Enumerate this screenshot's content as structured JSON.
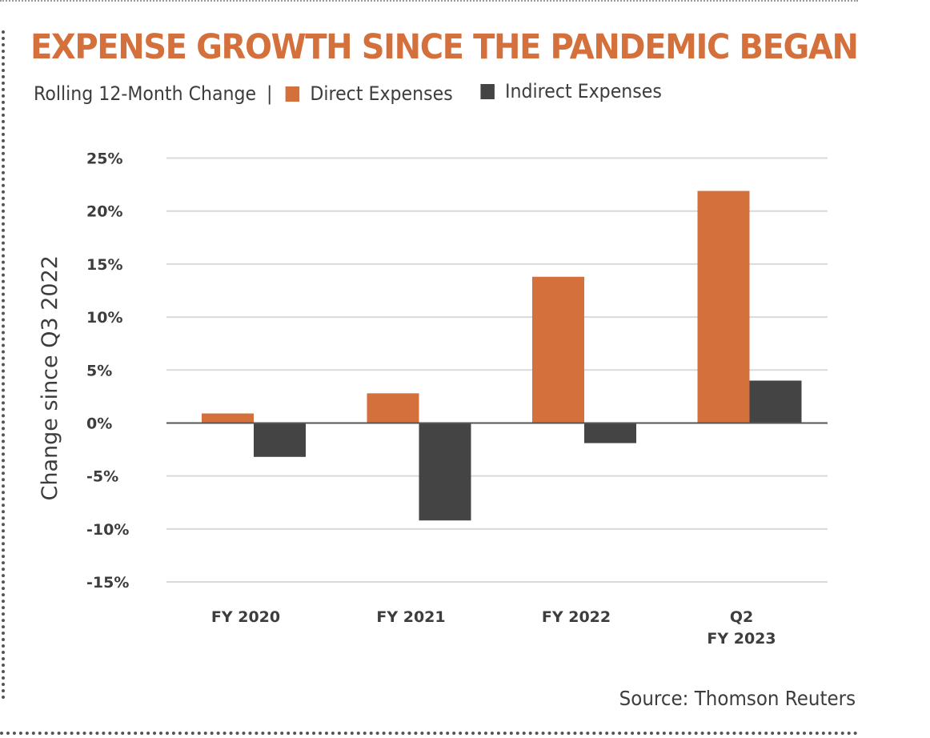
{
  "colors": {
    "direct": "#d4703c",
    "indirect": "#444444",
    "title": "#d4703c",
    "text": "#3d3d3d",
    "grid": "#d9d9d9",
    "zero_line": "#555555"
  },
  "header": {
    "title": "EXPENSE GROWTH SINCE THE PANDEMIC BEGAN",
    "subtitle": "Rolling 12-Month Change",
    "separator": "|"
  },
  "footer": {
    "source": "Source: Thomson Reuters"
  },
  "chart_data": {
    "type": "bar",
    "title": "EXPENSE GROWTH SINCE THE PANDEMIC BEGAN",
    "subtitle": "Rolling 12-Month Change",
    "xlabel": "",
    "ylabel": "Change since Q3 2022",
    "categories": [
      [
        "FY 2020"
      ],
      [
        "FY 2021"
      ],
      [
        "FY 2022"
      ],
      [
        "Q2",
        "FY 2023"
      ]
    ],
    "series": [
      {
        "name": "Direct Expenses",
        "values": [
          0.9,
          2.8,
          13.8,
          21.9
        ]
      },
      {
        "name": "Indirect Expenses",
        "values": [
          -3.2,
          -9.2,
          -1.9,
          4.0
        ]
      }
    ],
    "ylim": [
      -15,
      25
    ],
    "yticks": [
      25,
      20,
      15,
      10,
      5,
      0,
      -5,
      -10,
      -15
    ],
    "ytick_labels": [
      "25%",
      "20%",
      "15%",
      "10%",
      "5%",
      "0%",
      "-5%",
      "-10%",
      "-15%"
    ],
    "grid": true,
    "legend_position": "top-left"
  }
}
